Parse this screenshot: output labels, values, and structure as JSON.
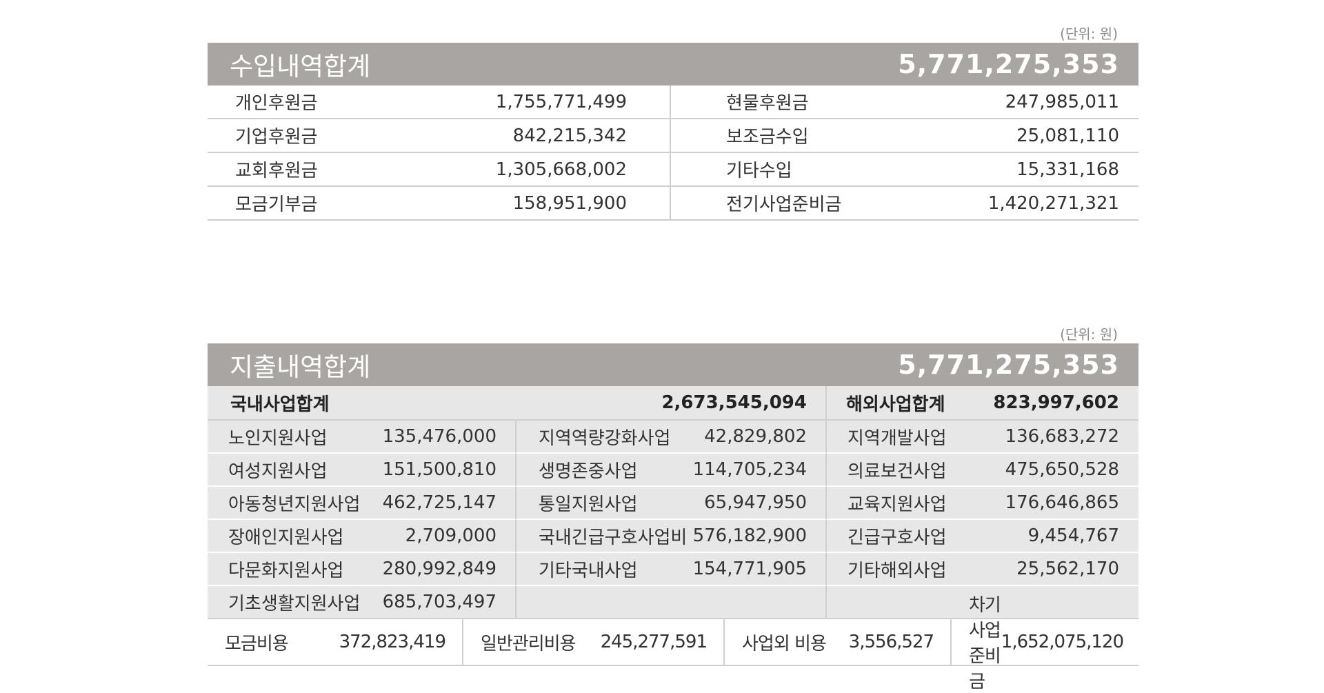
{
  "income": {
    "unit": "(단위: 원)",
    "title": "수입내역합계",
    "total": "5,771,275,353",
    "left": [
      {
        "label": "개인후원금",
        "value": "1,755,771,499"
      },
      {
        "label": "기업후원금",
        "value": "842,215,342"
      },
      {
        "label": "교회후원금",
        "value": "1,305,668,002"
      },
      {
        "label": "모금기부금",
        "value": "158,951,900"
      }
    ],
    "right": [
      {
        "label": "현물후원금",
        "value": "247,985,011"
      },
      {
        "label": "보조금수입",
        "value": "25,081,110"
      },
      {
        "label": "기타수입",
        "value": "15,331,168"
      },
      {
        "label": "전기사업준비금",
        "value": "1,420,271,321"
      }
    ]
  },
  "expense": {
    "unit": "(단위: 원)",
    "title": "지출내역합계",
    "total": "5,771,275,353",
    "domestic": {
      "label": "국내사업합계",
      "value": "2,673,545,094"
    },
    "overseas": {
      "label": "해외사업합계",
      "value": "823,997,602"
    },
    "col1": [
      {
        "label": "노인지원사업",
        "value": "135,476,000"
      },
      {
        "label": "여성지원사업",
        "value": "151,500,810"
      },
      {
        "label": "아동청년지원사업",
        "value": "462,725,147"
      },
      {
        "label": "장애인지원사업",
        "value": "2,709,000"
      },
      {
        "label": "다문화지원사업",
        "value": "280,992,849"
      },
      {
        "label": "기초생활지원사업",
        "value": "685,703,497"
      }
    ],
    "col2": [
      {
        "label": "지역역량강화사업",
        "value": "42,829,802"
      },
      {
        "label": "생명존중사업",
        "value": "114,705,234"
      },
      {
        "label": "통일지원사업",
        "value": "65,947,950"
      },
      {
        "label": "국내긴급구호사업비",
        "value": "576,182,900"
      },
      {
        "label": "기타국내사업",
        "value": "154,771,905"
      }
    ],
    "col3": [
      {
        "label": "지역개발사업",
        "value": "136,683,272"
      },
      {
        "label": "의료보건사업",
        "value": "475,650,528"
      },
      {
        "label": "교육지원사업",
        "value": "176,646,865"
      },
      {
        "label": "긴급구호사업",
        "value": "9,454,767"
      },
      {
        "label": "기타해외사업",
        "value": "25,562,170"
      }
    ],
    "footer": [
      {
        "label": "모금비용",
        "value": "372,823,419"
      },
      {
        "label": "일반관리비용",
        "value": "245,277,591"
      },
      {
        "label": "사업외 비용",
        "value": "3,556,527"
      },
      {
        "label": "차기사업준비금",
        "value": "1,652,075,120"
      }
    ]
  }
}
